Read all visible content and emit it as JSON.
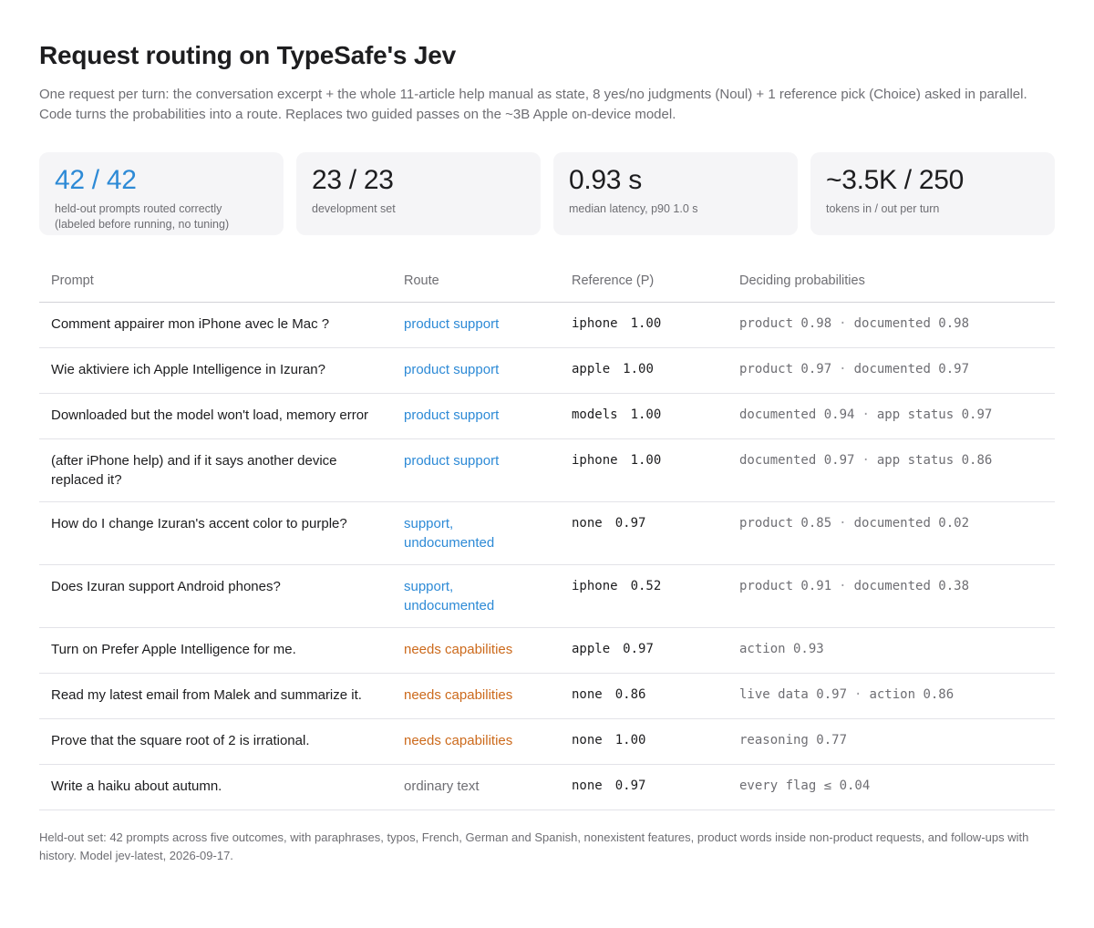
{
  "title": "Request routing on TypeSafe's Jev",
  "subtitle": "One request per turn: the conversation excerpt + the whole 11-article help manual as state, 8 yes/no judgments (Noul) + 1 reference pick (Choice) asked in parallel. Code turns the probabilities into a route. Replaces two guided passes on the ~3B Apple on-device model.",
  "stats": [
    {
      "value": "42 / 42",
      "label_line1": "held-out prompts routed correctly",
      "label_line2": "(labeled before running, no tuning)"
    },
    {
      "value": "23 / 23",
      "label_line1": "development set",
      "label_line2": ""
    },
    {
      "value": "0.93 s",
      "label_line1": "median latency, p90 1.0 s",
      "label_line2": ""
    },
    {
      "value": "~3.5K / 250",
      "label_line1": "tokens in / out per turn",
      "label_line2": ""
    }
  ],
  "colors": {
    "accent_blue": "#2d8ad6",
    "orange": "#cc6a1c",
    "gray": "#6e6e73"
  },
  "table": {
    "headers": {
      "prompt": "Prompt",
      "route": "Route",
      "reference": "Reference (P)",
      "probs": "Deciding probabilities"
    },
    "rows": [
      {
        "prompt": "Comment appairer mon iPhone avec le Mac ?",
        "route": "product support",
        "route_color": "blue",
        "ref": "iphone",
        "ref_p": "1.00",
        "prob1": "product 0.98",
        "prob2": "documented 0.98"
      },
      {
        "prompt": "Wie aktiviere ich Apple Intelligence in Izuran?",
        "route": "product support",
        "route_color": "blue",
        "ref": "apple",
        "ref_p": "1.00",
        "prob1": "product 0.97",
        "prob2": "documented 0.97"
      },
      {
        "prompt": "Downloaded but the model won't load, memory error",
        "route": "product support",
        "route_color": "blue",
        "ref": "models",
        "ref_p": "1.00",
        "prob1": "documented 0.94",
        "prob2": "app status 0.97"
      },
      {
        "prompt": "(after iPhone help) and if it says another device replaced it?",
        "route": "product support",
        "route_color": "blue",
        "ref": "iphone",
        "ref_p": "1.00",
        "prob1": "documented 0.97",
        "prob2": "app status 0.86"
      },
      {
        "prompt": "How do I change Izuran's accent color to purple?",
        "route": "support, undocumented",
        "route_color": "blue",
        "ref": "none",
        "ref_p": "0.97",
        "prob1": "product 0.85",
        "prob2": "documented 0.02"
      },
      {
        "prompt": "Does Izuran support Android phones?",
        "route": "support, undocumented",
        "route_color": "blue",
        "ref": "iphone",
        "ref_p": "0.52",
        "prob1": "product 0.91",
        "prob2": "documented 0.38"
      },
      {
        "prompt": "Turn on Prefer Apple Intelligence for me.",
        "route": "needs capabilities",
        "route_color": "orange",
        "ref": "apple",
        "ref_p": "0.97",
        "prob1": "action 0.93",
        "prob2": ""
      },
      {
        "prompt": "Read my latest email from Malek and summarize it.",
        "route": "needs capabilities",
        "route_color": "orange",
        "ref": "none",
        "ref_p": "0.86",
        "prob1": "live data 0.97",
        "prob2": "action 0.86"
      },
      {
        "prompt": "Prove that the square root of 2 is irrational.",
        "route": "needs capabilities",
        "route_color": "orange",
        "ref": "none",
        "ref_p": "1.00",
        "prob1": "reasoning 0.77",
        "prob2": ""
      },
      {
        "prompt": "Write a haiku about autumn.",
        "route": "ordinary text",
        "route_color": "gray",
        "ref": "none",
        "ref_p": "0.97",
        "prob1": "every flag ≤ 0.04",
        "prob2": ""
      }
    ],
    "separator": "·"
  },
  "footnote": "Held-out set: 42 prompts across five outcomes, with paraphrases, typos, French, German and Spanish, nonexistent features, product words inside non-product requests, and follow-ups with history. Model jev-latest, 2026-09-17."
}
